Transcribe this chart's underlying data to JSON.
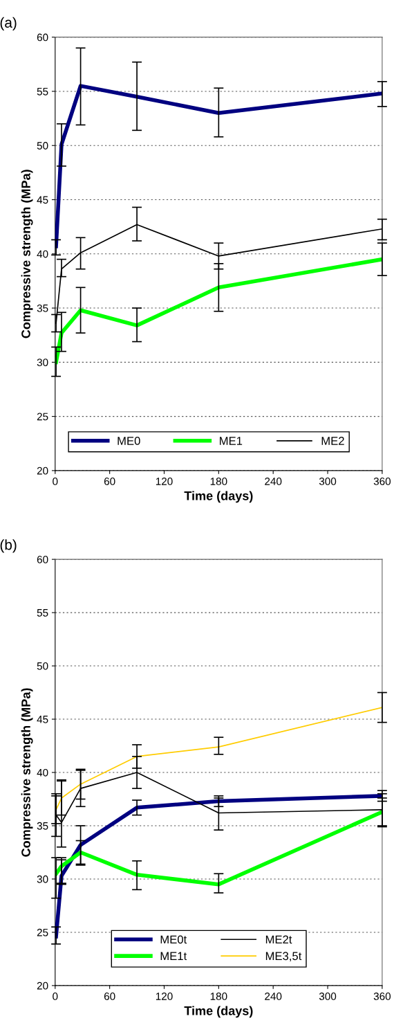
{
  "chart_data": [
    {
      "type": "line",
      "title": "(a)",
      "xlabel": "Time (days)",
      "ylabel": "Compressive strength (MPa)",
      "xlim": [
        0,
        360
      ],
      "xticks": [
        0,
        60,
        120,
        180,
        240,
        300,
        360
      ],
      "ylim": [
        20,
        60
      ],
      "yticks": [
        20,
        25,
        30,
        35,
        40,
        45,
        50,
        55,
        60
      ],
      "grid": "y",
      "legend": "bottom",
      "marker": "none",
      "series": [
        {
          "name": "ME0",
          "color": "#000080",
          "x": [
            1,
            7,
            28,
            90,
            180,
            360
          ],
          "values": [
            40.7,
            50.1,
            55.5,
            54.5,
            53.0,
            54.8
          ],
          "errors": [
            [
              39.9,
              41.3
            ],
            [
              48.1,
              52.0
            ],
            [
              51.9,
              59.0
            ],
            [
              51.4,
              57.7
            ],
            [
              50.8,
              55.3
            ],
            [
              53.6,
              55.9
            ]
          ]
        },
        {
          "name": "ME1",
          "color": "#00ff00",
          "x": [
            1,
            7,
            28,
            90,
            180,
            360
          ],
          "values": [
            30.0,
            32.7,
            34.8,
            33.4,
            36.9,
            39.5
          ],
          "errors": [
            [
              28.7,
              31.4
            ],
            [
              31.0,
              34.6
            ],
            [
              32.7,
              36.9
            ],
            [
              31.9,
              35.0
            ],
            [
              34.7,
              39.1
            ],
            [
              38.0,
              41.0
            ]
          ]
        },
        {
          "name": "ME2",
          "color": "#000000",
          "x": [
            1,
            7,
            28,
            90,
            180,
            360
          ],
          "values": [
            33.6,
            38.6,
            40.1,
            42.7,
            39.8,
            42.3
          ],
          "errors": [
            [
              32.8,
              34.4
            ],
            [
              37.9,
              39.5
            ],
            [
              38.6,
              41.5
            ],
            [
              41.2,
              44.3
            ],
            [
              38.6,
              41.0
            ],
            [
              41.3,
              43.2
            ]
          ]
        }
      ]
    },
    {
      "type": "line",
      "title": "(b)",
      "xlabel": "Time (days)",
      "ylabel": "Compressive strength (MPa)",
      "xlim": [
        0,
        360
      ],
      "xticks": [
        0,
        60,
        120,
        180,
        240,
        300,
        360
      ],
      "ylim": [
        20,
        60
      ],
      "yticks": [
        20,
        25,
        30,
        35,
        40,
        45,
        50,
        55,
        60
      ],
      "grid": "y",
      "legend": "bottom",
      "marker": "none",
      "series": [
        {
          "name": "ME0t",
          "color": "#000080",
          "x": [
            1,
            7,
            28,
            90,
            180,
            360
          ],
          "values": [
            24.6,
            30.3,
            33.2,
            36.7,
            37.3,
            37.8
          ],
          "errors": [
            [
              23.9,
              25.5
            ],
            [
              29.6,
              31.8
            ],
            [
              31.4,
              35.0
            ],
            [
              36.0,
              37.4
            ],
            [
              36.8,
              37.8
            ],
            [
              37.3,
              38.3
            ]
          ]
        },
        {
          "name": "ME1t",
          "color": "#00ff00",
          "x": [
            1,
            7,
            28,
            90,
            180,
            360
          ],
          "values": [
            30.5,
            31.2,
            32.5,
            30.4,
            29.5,
            36.3
          ],
          "errors": [
            [
              28.2,
              32.0
            ],
            [
              29.5,
              32.0
            ],
            [
              31.3,
              33.6
            ],
            [
              29.0,
              31.7
            ],
            [
              28.7,
              30.5
            ],
            [
              35.0,
              37.6
            ]
          ]
        },
        {
          "name": "ME2t",
          "color": "#000000",
          "x": [
            1,
            7,
            28,
            90,
            180,
            360
          ],
          "values": [
            36.0,
            35.3,
            38.5,
            40.0,
            36.2,
            36.5
          ],
          "errors": [
            [
              34.0,
              38.0
            ],
            [
              33.0,
              39.3
            ],
            [
              36.8,
              40.3
            ],
            [
              38.5,
              41.5
            ],
            [
              34.6,
              37.6
            ],
            [
              34.9,
              38.0
            ]
          ]
        },
        {
          "name": "ME3,5t",
          "color": "#ffcc00",
          "x": [
            1,
            7,
            28,
            90,
            180,
            360
          ],
          "values": [
            36.5,
            37.6,
            38.9,
            41.5,
            42.4,
            46.1
          ],
          "errors": [
            [
              35.2,
              37.8
            ],
            [
              36.0,
              39.2
            ],
            [
              37.5,
              40.2
            ],
            [
              40.4,
              42.6
            ],
            [
              41.7,
              43.3
            ],
            [
              44.7,
              47.5
            ]
          ]
        }
      ]
    }
  ]
}
